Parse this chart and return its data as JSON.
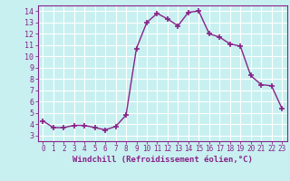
{
  "x": [
    0,
    1,
    2,
    3,
    4,
    5,
    6,
    7,
    8,
    9,
    10,
    11,
    12,
    13,
    14,
    15,
    16,
    17,
    18,
    19,
    20,
    21,
    22,
    23
  ],
  "y": [
    4.3,
    3.7,
    3.7,
    3.9,
    3.9,
    3.7,
    3.5,
    3.8,
    4.8,
    10.7,
    13.0,
    13.8,
    13.3,
    12.7,
    13.9,
    14.0,
    12.0,
    11.7,
    11.1,
    10.9,
    8.3,
    7.5,
    7.4,
    5.4
  ],
  "line_color": "#882288",
  "marker": "+",
  "markersize": 4,
  "linewidth": 1.0,
  "xlabel": "Windchill (Refroidissement éolien,°C)",
  "xlabel_fontsize": 6.5,
  "xlim": [
    -0.5,
    23.5
  ],
  "ylim": [
    2.5,
    14.5
  ],
  "yticks": [
    3,
    4,
    5,
    6,
    7,
    8,
    9,
    10,
    11,
    12,
    13,
    14
  ],
  "xticks": [
    0,
    1,
    2,
    3,
    4,
    5,
    6,
    7,
    8,
    9,
    10,
    11,
    12,
    13,
    14,
    15,
    16,
    17,
    18,
    19,
    20,
    21,
    22,
    23
  ],
  "bg_color": "#c8f0f0",
  "grid_color": "#ffffff",
  "tick_color": "#882288",
  "spine_color": "#882288",
  "label_color": "#882288"
}
